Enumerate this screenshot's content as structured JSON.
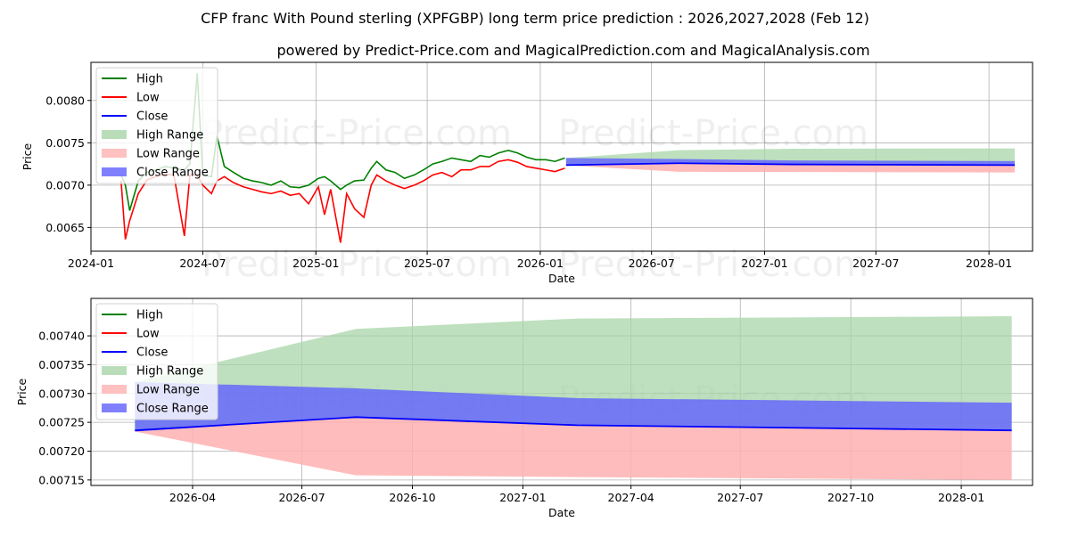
{
  "title": "CFP franc With Pound sterling (XPFGBP) long term price prediction : 2026,2027,2028 (Feb 12)",
  "subtitle": "powered by Predict-Price.com and MagicalPrediction.com and MagicalAnalysis.com",
  "watermark": "Predict-Price.com",
  "colors": {
    "high": "#008000",
    "low": "#ff0000",
    "close": "#0000ff",
    "high_range": "#a8d5a8",
    "low_range": "#ffb0b0",
    "close_range": "#6060ff"
  },
  "legend": [
    "High",
    "Low",
    "Close",
    "High Range",
    "Low Range",
    "Close Range"
  ],
  "chart_data": [
    {
      "type": "line",
      "name": "long-term",
      "xlabel": "Date",
      "ylabel": "Price",
      "ylim": [
        0.00622,
        0.00845
      ],
      "xticks": [
        [
          "2024-01-01",
          "2024-01"
        ],
        [
          "2024-07-01",
          "2024-07"
        ],
        [
          "2025-01-01",
          "2025-01"
        ],
        [
          "2025-07-01",
          "2025-07"
        ],
        [
          "2026-01-01",
          "2026-01"
        ],
        [
          "2026-07-01",
          "2026-07"
        ],
        [
          "2027-01-01",
          "2027-01"
        ],
        [
          "2027-07-01",
          "2027-07"
        ],
        [
          "2028-01-01",
          "2028-01"
        ]
      ],
      "yticks": [
        [
          0.0065,
          "0.0065"
        ],
        [
          0.007,
          "0.0070"
        ],
        [
          0.0075,
          "0.0075"
        ],
        [
          0.008,
          "0.0080"
        ]
      ],
      "grid": true,
      "legend_position": "upper-left",
      "history": {
        "dates": [
          "2024-02-19",
          "2024-02-26",
          "2024-03-04",
          "2024-03-18",
          "2024-04-01",
          "2024-04-15",
          "2024-05-01",
          "2024-05-15",
          "2024-06-01",
          "2024-06-10",
          "2024-06-22",
          "2024-07-01",
          "2024-07-15",
          "2024-07-24",
          "2024-08-05",
          "2024-08-20",
          "2024-09-05",
          "2024-09-20",
          "2024-10-05",
          "2024-10-20",
          "2024-11-05",
          "2024-11-20",
          "2024-12-05",
          "2024-12-20",
          "2025-01-05",
          "2025-01-15",
          "2025-01-25",
          "2025-02-10",
          "2025-02-20",
          "2025-03-05",
          "2025-03-20",
          "2025-04-01",
          "2025-04-10",
          "2025-04-25",
          "2025-05-10",
          "2025-05-25",
          "2025-06-10",
          "2025-06-25",
          "2025-07-10",
          "2025-07-25",
          "2025-08-10",
          "2025-08-25",
          "2025-09-10",
          "2025-09-25",
          "2025-10-10",
          "2025-10-25",
          "2025-11-10",
          "2025-11-25",
          "2025-12-10",
          "2025-12-25",
          "2026-01-10",
          "2026-01-25",
          "2026-02-10"
        ],
        "high": [
          0.00712,
          0.007,
          0.0067,
          0.00705,
          0.00715,
          0.00718,
          0.00722,
          0.0072,
          0.00718,
          0.00725,
          0.00832,
          0.00712,
          0.0071,
          0.00758,
          0.00722,
          0.00715,
          0.00708,
          0.00705,
          0.00703,
          0.007,
          0.00705,
          0.00698,
          0.00697,
          0.007,
          0.00708,
          0.0071,
          0.00705,
          0.00695,
          0.007,
          0.00705,
          0.00706,
          0.0072,
          0.00728,
          0.00718,
          0.00715,
          0.00708,
          0.00712,
          0.00718,
          0.00725,
          0.00728,
          0.00732,
          0.0073,
          0.00728,
          0.00735,
          0.00733,
          0.00738,
          0.00741,
          0.00738,
          0.00733,
          0.0073,
          0.0073,
          0.00728,
          0.00732
        ],
        "low": [
          0.00705,
          0.00636,
          0.00658,
          0.0069,
          0.00706,
          0.0071,
          0.00713,
          0.00712,
          0.0064,
          0.00712,
          0.00712,
          0.007,
          0.0069,
          0.00705,
          0.0071,
          0.00703,
          0.00698,
          0.00695,
          0.00692,
          0.0069,
          0.00693,
          0.00688,
          0.0069,
          0.00678,
          0.00698,
          0.00665,
          0.00695,
          0.00632,
          0.0069,
          0.00672,
          0.00662,
          0.007,
          0.00712,
          0.00705,
          0.007,
          0.00696,
          0.007,
          0.00705,
          0.00712,
          0.00715,
          0.0071,
          0.00718,
          0.00718,
          0.00722,
          0.00722,
          0.00728,
          0.0073,
          0.00727,
          0.00722,
          0.0072,
          0.00718,
          0.00716,
          0.0072
        ]
      }
    },
    {
      "type": "area",
      "name": "forecast",
      "xlabel": "Date",
      "ylabel": "Price",
      "ylim": [
        0.0071405,
        0.007465
      ],
      "xticks": [
        [
          "2026-04-01",
          "2026-04"
        ],
        [
          "2026-07-01",
          "2026-07"
        ],
        [
          "2026-10-01",
          "2026-10"
        ],
        [
          "2027-01-01",
          "2027-01"
        ],
        [
          "2027-04-01",
          "2027-04"
        ],
        [
          "2027-07-01",
          "2027-07"
        ],
        [
          "2027-10-01",
          "2027-10"
        ],
        [
          "2028-01-01",
          "2028-01"
        ]
      ],
      "yticks": [
        [
          0.00715,
          "0.00715"
        ],
        [
          0.0072,
          "0.00720"
        ],
        [
          0.00725,
          "0.00725"
        ],
        [
          0.0073,
          "0.00730"
        ],
        [
          0.00735,
          "0.00735"
        ],
        [
          0.0074,
          "0.00740"
        ]
      ],
      "grid": true,
      "legend_position": "upper-left"
    }
  ],
  "forecast": {
    "dates": [
      "2026-02-12",
      "2026-08-15",
      "2027-02-15",
      "2028-02-12"
    ],
    "close": [
      0.007236,
      0.007259,
      0.007245,
      0.007236
    ],
    "high_range": {
      "upper": [
        0.00732,
        0.007412,
        0.00743,
        0.007434
      ],
      "lower": [
        0.007236,
        0.007259,
        0.007245,
        0.007236
      ]
    },
    "close_range": {
      "upper": [
        0.00732,
        0.007309,
        0.007292,
        0.007284
      ],
      "lower": [
        0.007234,
        0.007259,
        0.007245,
        0.007236
      ]
    },
    "low_range": {
      "upper": [
        0.007236,
        0.007259,
        0.007245,
        0.007236
      ],
      "lower": [
        0.007234,
        0.007158,
        0.007155,
        0.00715
      ]
    }
  }
}
